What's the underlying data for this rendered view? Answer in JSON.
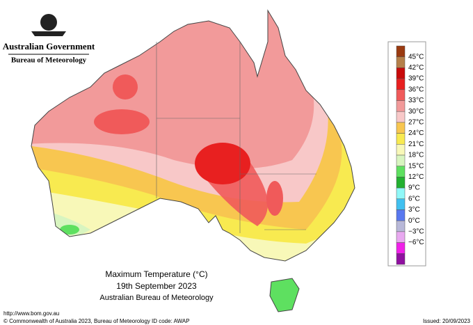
{
  "header": {
    "agency": "Australian Government",
    "bureau": "Bureau of Meteorology"
  },
  "map": {
    "title": "Maximum Temperature (°C)",
    "date": "19th September 2023",
    "source": "Australian Bureau of Meteorology"
  },
  "legend": {
    "labels": [
      "45°C",
      "42°C",
      "39°C",
      "36°C",
      "33°C",
      "30°C",
      "27°C",
      "24°C",
      "21°C",
      "18°C",
      "15°C",
      "12°C",
      "9°C",
      "6°C",
      "3°C",
      "0°C",
      "−3°C",
      "−6°C"
    ],
    "colors": [
      "#9a3a10",
      "#b5804a",
      "#c80a0a",
      "#e82020",
      "#f05a5a",
      "#f29a9a",
      "#f8c8c8",
      "#f8c650",
      "#f8ea50",
      "#f8f8b8",
      "#d8f5c0",
      "#5ee060",
      "#22b030",
      "#90f8f8",
      "#40c0f0",
      "#5878f0",
      "#b8b8d8",
      "#e8a8f0",
      "#f020e8",
      "#9010a0"
    ]
  },
  "footer": {
    "url": "http://www.bom.gov.au",
    "copyright": "© Commonwealth of Australia 2023, Bureau of Meteorology",
    "id": "ID code: AWAP",
    "issued": "Issued: 20/09/2023"
  }
}
